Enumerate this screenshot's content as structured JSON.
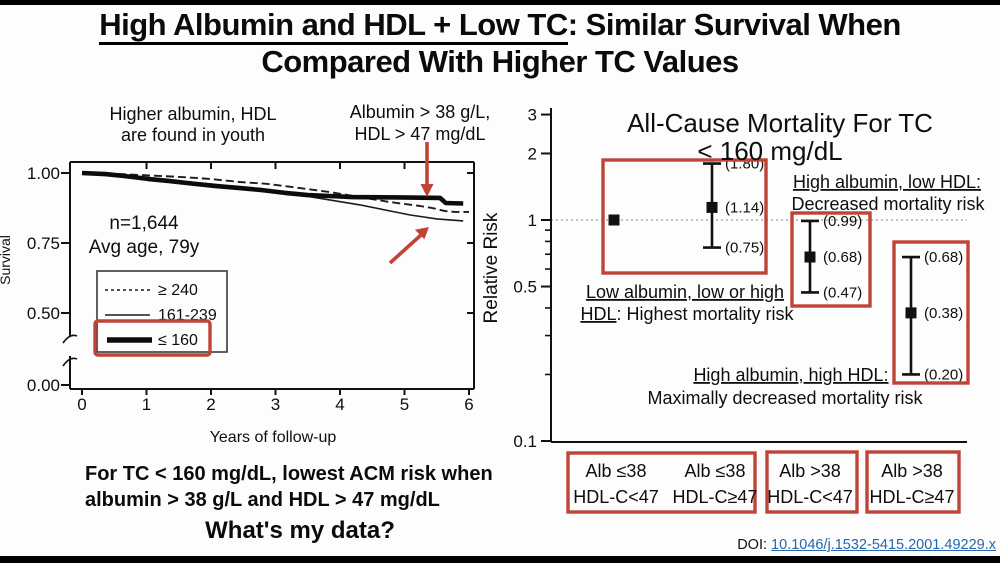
{
  "slide": {
    "title_underlined": "High Albumin and HDL + Low TC",
    "title_rest": ": Similar Survival When",
    "title_line2": "Compared With Higher TC Values",
    "conclusion_line1": "For TC < 160 mg/dL, lowest ACM risk when",
    "conclusion_line2": "albumin > 38 g/L and HDL > 47 mg/dL",
    "question": "What's my data?",
    "doi_label": "DOI: ",
    "doi_link": "10.1046/j.1532-5415.2001.49229.x"
  },
  "colors": {
    "highlight_red": "#bf4337",
    "link_blue": "#2566ad",
    "curve_black": "#0c0c0c"
  },
  "chart_data": [
    {
      "type": "line",
      "subtype": "kaplan-meier-survival",
      "title": "",
      "xlabel": "Years of follow-up",
      "ylabel": "Survival",
      "xlim": [
        0,
        6
      ],
      "ylim_shown": [
        0.0,
        1.0
      ],
      "axis_break_between": [
        0.0,
        0.45
      ],
      "grid": false,
      "x_ticks": [
        {
          "label": "0",
          "value": 0
        },
        {
          "label": "1",
          "value": 1
        },
        {
          "label": "2",
          "value": 2
        },
        {
          "label": "3",
          "value": 3
        },
        {
          "label": "4",
          "value": 4
        },
        {
          "label": "5",
          "value": 5
        },
        {
          "label": "6",
          "value": 6
        }
      ],
      "y_ticks": [
        {
          "label": "1.00",
          "value": 1.0
        },
        {
          "label": "0.75",
          "value": 0.75
        },
        {
          "label": "0.50",
          "value": 0.5
        },
        {
          "label": "0.00",
          "value": 0.0
        }
      ],
      "annotations": {
        "youth_line1": "Higher albumin, HDL",
        "youth_line2": "are found in youth",
        "albumin_line1": "Albumin > 38 g/L,",
        "albumin_line2": "HDL > 47 mg/dL",
        "n": "n=1,644",
        "age": "Avg age, 79y"
      },
      "legend": [
        {
          "label": "≥ 240",
          "style": "dashed",
          "highlighted": false
        },
        {
          "label": "161-239",
          "style": "thin",
          "highlighted": false
        },
        {
          "label": "≤ 160",
          "style": "thick",
          "highlighted": true
        }
      ],
      "series": [
        {
          "name": "≥ 240 (TC mg/dL)",
          "style": "dashed",
          "points": [
            [
              0,
              1.0
            ],
            [
              0.59,
              0.996
            ],
            [
              1.05,
              0.991
            ],
            [
              1.52,
              0.986
            ],
            [
              1.98,
              0.979
            ],
            [
              2.45,
              0.968
            ],
            [
              2.88,
              0.961
            ],
            [
              3.38,
              0.946
            ],
            [
              3.84,
              0.932
            ],
            [
              4.31,
              0.914
            ],
            [
              4.78,
              0.896
            ],
            [
              5.24,
              0.882
            ],
            [
              5.43,
              0.875
            ],
            [
              5.63,
              0.864
            ],
            [
              5.78,
              0.861
            ],
            [
              6.0,
              0.861
            ]
          ]
        },
        {
          "name": "161-239 (TC mg/dL)",
          "style": "thin",
          "points": [
            [
              0,
              0.996
            ],
            [
              0.59,
              0.989
            ],
            [
              1.05,
              0.982
            ],
            [
              1.52,
              0.971
            ],
            [
              1.98,
              0.961
            ],
            [
              2.45,
              0.95
            ],
            [
              2.91,
              0.936
            ],
            [
              3.38,
              0.921
            ],
            [
              3.84,
              0.904
            ],
            [
              4.31,
              0.886
            ],
            [
              4.7,
              0.868
            ],
            [
              5.09,
              0.85
            ],
            [
              5.5,
              0.836
            ],
            [
              5.91,
              0.829
            ]
          ]
        },
        {
          "name": "≤ 160 (TC mg/dL)",
          "style": "thick",
          "points": [
            [
              0,
              1.0
            ],
            [
              0.36,
              0.996
            ],
            [
              0.67,
              0.989
            ],
            [
              1.02,
              0.979
            ],
            [
              1.36,
              0.971
            ],
            [
              1.75,
              0.961
            ],
            [
              2.06,
              0.954
            ],
            [
              2.45,
              0.946
            ],
            [
              2.79,
              0.939
            ],
            [
              3.15,
              0.929
            ],
            [
              3.5,
              0.921
            ],
            [
              3.84,
              0.918
            ],
            [
              4.19,
              0.914
            ],
            [
              4.93,
              0.913
            ],
            [
              5.55,
              0.911
            ],
            [
              5.64,
              0.893
            ],
            [
              5.91,
              0.891
            ]
          ]
        }
      ]
    },
    {
      "type": "scatter",
      "subtype": "forest-plot",
      "title_line1": "All-Cause Mortality For TC",
      "title_line2": "< 160 mg/dL",
      "ylabel": "Relative Risk",
      "yscale": "log",
      "ylim": [
        0.1,
        3
      ],
      "reference_line": 1.0,
      "y_major_ticks": [
        {
          "label": "3",
          "value": 3
        },
        {
          "label": "2",
          "value": 2
        },
        {
          "label": "1",
          "value": 1
        },
        {
          "label": "0.5",
          "value": 0.5
        },
        {
          "label": "0.1",
          "value": 0.1
        }
      ],
      "y_minor_ticks": [
        0.9,
        0.8,
        0.7,
        0.6,
        0.4,
        0.3,
        0.2
      ],
      "groups": [
        {
          "albumin": "Alb ≤38",
          "hdl": "HDL-C<47",
          "rr": 1.0,
          "ci_low": null,
          "ci_high": null,
          "reference": true
        },
        {
          "albumin": "Alb ≤38",
          "hdl": "HDL-C≥47",
          "rr": 1.14,
          "ci_low": 0.75,
          "ci_high": 1.8
        },
        {
          "albumin": "Alb >38",
          "hdl": "HDL-C<47",
          "rr": 0.68,
          "ci_low": 0.47,
          "ci_high": 0.99
        },
        {
          "albumin": "Alb >38",
          "hdl": "HDL-C≥47",
          "rr": 0.38,
          "ci_low": 0.2,
          "ci_high": 0.68
        }
      ],
      "annotations": [
        {
          "line1": "High albumin, low HDL:",
          "line2": "Decreased mortality risk"
        },
        {
          "line1": "Low albumin, low or high",
          "line2_underlined": "HDL",
          "line2_rest": ": Highest mortality risk"
        },
        {
          "line1": "High albumin, high HDL:",
          "line2": "Maximally decreased mortality risk"
        }
      ]
    }
  ]
}
